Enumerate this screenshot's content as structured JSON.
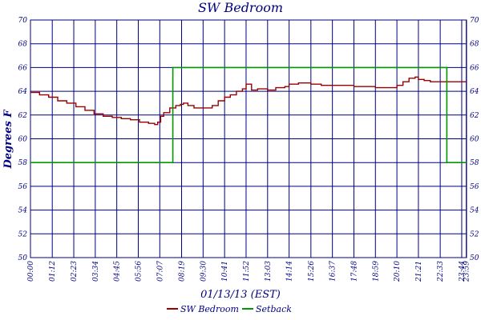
{
  "chart_data": {
    "type": "line",
    "title": "SW Bedroom",
    "xlabel": "01/13/13 (EST)",
    "ylabel": "Degrees F",
    "ylim": [
      50,
      70
    ],
    "yticks": [
      "50",
      "52",
      "54",
      "56",
      "58",
      "60",
      "62",
      "64",
      "66",
      "68",
      "70"
    ],
    "xticks": [
      "00:00",
      "01:12",
      "02:23",
      "03:34",
      "04:45",
      "05:56",
      "07:07",
      "08:19",
      "09:30",
      "10:41",
      "11:52",
      "13:03",
      "14:14",
      "15:26",
      "16:37",
      "17:48",
      "18:59",
      "20:10",
      "21:21",
      "22:33",
      "23:44",
      "23:59"
    ],
    "grid": true,
    "legend_position": "bottom",
    "series": [
      {
        "name": "SW Bedroom",
        "color": "#990000",
        "x": [
          "00:00",
          "00:30",
          "01:00",
          "01:30",
          "02:00",
          "02:30",
          "03:00",
          "03:30",
          "04:00",
          "04:30",
          "05:00",
          "05:30",
          "06:00",
          "06:30",
          "06:50",
          "07:00",
          "07:10",
          "07:20",
          "07:40",
          "08:00",
          "08:15",
          "08:25",
          "08:40",
          "09:00",
          "09:30",
          "10:00",
          "10:20",
          "10:41",
          "11:00",
          "11:20",
          "11:40",
          "11:52",
          "12:10",
          "12:30",
          "13:03",
          "13:30",
          "14:00",
          "14:14",
          "14:45",
          "15:26",
          "16:00",
          "16:37",
          "17:15",
          "17:48",
          "18:20",
          "18:59",
          "19:30",
          "20:10",
          "20:30",
          "20:50",
          "21:10",
          "21:21",
          "21:40",
          "22:00",
          "22:33",
          "23:00",
          "23:30",
          "23:59"
        ],
        "values": [
          63.9,
          63.7,
          63.5,
          63.2,
          63.0,
          62.7,
          62.4,
          62.1,
          61.9,
          61.8,
          61.7,
          61.6,
          61.4,
          61.3,
          61.2,
          61.4,
          61.9,
          62.2,
          62.6,
          62.8,
          62.9,
          63.0,
          62.8,
          62.6,
          62.6,
          62.8,
          63.2,
          63.5,
          63.7,
          64.0,
          64.2,
          64.6,
          64.1,
          64.2,
          64.1,
          64.3,
          64.4,
          64.6,
          64.7,
          64.6,
          64.5,
          64.5,
          64.5,
          64.4,
          64.4,
          64.3,
          64.3,
          64.5,
          64.8,
          65.1,
          65.2,
          65.0,
          64.9,
          64.8,
          64.8,
          64.8,
          64.8,
          64.8
        ]
      },
      {
        "name": "Setback",
        "color": "#009900",
        "x": [
          "00:00",
          "07:50",
          "07:50",
          "22:55",
          "22:55",
          "23:59"
        ],
        "values": [
          58,
          58,
          66,
          66,
          58,
          58
        ]
      }
    ]
  }
}
